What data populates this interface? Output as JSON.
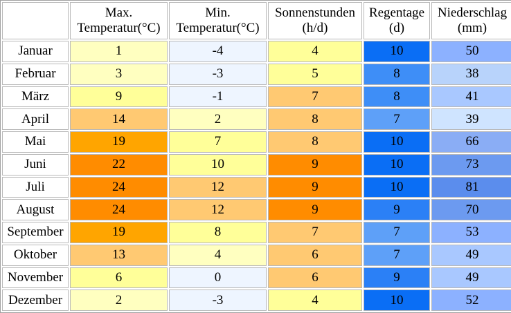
{
  "table": {
    "headers": [
      {
        "key": "month",
        "lines": [
          "",
          ""
        ]
      },
      {
        "key": "max_temp",
        "lines": [
          "Max.",
          "Temperatur(°C)"
        ]
      },
      {
        "key": "min_temp",
        "lines": [
          "Min.",
          "Temperatur(°C)"
        ]
      },
      {
        "key": "sun",
        "lines": [
          "Sonnenstunden",
          "(h/d)"
        ]
      },
      {
        "key": "rain_days",
        "lines": [
          "Regentage",
          "(d)"
        ]
      },
      {
        "key": "precip",
        "lines": [
          "Niederschlag",
          "(mm)"
        ]
      }
    ],
    "rows": [
      {
        "month": "Januar",
        "max_temp": "1",
        "min_temp": "-4",
        "sun": "4",
        "rain_days": "10",
        "precip": "50",
        "colors": {
          "max_temp": "#ffffc0",
          "min_temp": "#eef5ff",
          "sun": "#ffff99",
          "rain_days": "#0a6ef5",
          "precip": "#8cb1ff"
        }
      },
      {
        "month": "Februar",
        "max_temp": "3",
        "min_temp": "-3",
        "sun": "5",
        "rain_days": "8",
        "precip": "38",
        "colors": {
          "max_temp": "#ffffc0",
          "min_temp": "#eef5ff",
          "sun": "#ffff99",
          "rain_days": "#3e8ef7",
          "precip": "#b8d3fb"
        }
      },
      {
        "month": "März",
        "max_temp": "9",
        "min_temp": "-1",
        "sun": "7",
        "rain_days": "8",
        "precip": "41",
        "colors": {
          "max_temp": "#ffff99",
          "min_temp": "#eef5ff",
          "sun": "#ffc972",
          "rain_days": "#3e8ef7",
          "precip": "#a9c8ff"
        }
      },
      {
        "month": "April",
        "max_temp": "14",
        "min_temp": "2",
        "sun": "8",
        "rain_days": "7",
        "precip": "39",
        "colors": {
          "max_temp": "#ffc972",
          "min_temp": "#ffffc0",
          "sun": "#ffc972",
          "rain_days": "#5ea0f8",
          "precip": "#cfe4ff"
        }
      },
      {
        "month": "Mai",
        "max_temp": "19",
        "min_temp": "7",
        "sun": "8",
        "rain_days": "10",
        "precip": "66",
        "colors": {
          "max_temp": "#ffa500",
          "min_temp": "#ffff99",
          "sun": "#ffc972",
          "rain_days": "#0a6ef5",
          "precip": "#8aadf5"
        }
      },
      {
        "month": "Juni",
        "max_temp": "22",
        "min_temp": "10",
        "sun": "9",
        "rain_days": "10",
        "precip": "73",
        "colors": {
          "max_temp": "#ff8c00",
          "min_temp": "#ffff99",
          "sun": "#ff8c00",
          "rain_days": "#0a6ef5",
          "precip": "#6c9af0"
        }
      },
      {
        "month": "Juli",
        "max_temp": "24",
        "min_temp": "12",
        "sun": "9",
        "rain_days": "10",
        "precip": "81",
        "colors": {
          "max_temp": "#ff8c00",
          "min_temp": "#ffc972",
          "sun": "#ff8c00",
          "rain_days": "#0a6ef5",
          "precip": "#5b8ded"
        }
      },
      {
        "month": "August",
        "max_temp": "24",
        "min_temp": "12",
        "sun": "9",
        "rain_days": "9",
        "precip": "70",
        "colors": {
          "max_temp": "#ff8c00",
          "min_temp": "#ffc972",
          "sun": "#ff8c00",
          "rain_days": "#2b80f6",
          "precip": "#6c9af0"
        }
      },
      {
        "month": "September",
        "max_temp": "19",
        "min_temp": "8",
        "sun": "7",
        "rain_days": "7",
        "precip": "53",
        "colors": {
          "max_temp": "#ffa500",
          "min_temp": "#ffff99",
          "sun": "#ffc972",
          "rain_days": "#5ea0f8",
          "precip": "#8cb1ff"
        }
      },
      {
        "month": "Oktober",
        "max_temp": "13",
        "min_temp": "4",
        "sun": "6",
        "rain_days": "7",
        "precip": "49",
        "colors": {
          "max_temp": "#ffc972",
          "min_temp": "#ffffc0",
          "sun": "#ffc972",
          "rain_days": "#5ea0f8",
          "precip": "#a9c8ff"
        }
      },
      {
        "month": "November",
        "max_temp": "6",
        "min_temp": "0",
        "sun": "6",
        "rain_days": "9",
        "precip": "49",
        "colors": {
          "max_temp": "#ffff99",
          "min_temp": "#eef5ff",
          "sun": "#ffc972",
          "rain_days": "#2b80f6",
          "precip": "#a9c8ff"
        }
      },
      {
        "month": "Dezember",
        "max_temp": "2",
        "min_temp": "-3",
        "sun": "4",
        "rain_days": "10",
        "precip": "52",
        "colors": {
          "max_temp": "#ffffc0",
          "min_temp": "#eef5ff",
          "sun": "#ffff99",
          "rain_days": "#0a6ef5",
          "precip": "#8cb1ff"
        }
      }
    ]
  }
}
